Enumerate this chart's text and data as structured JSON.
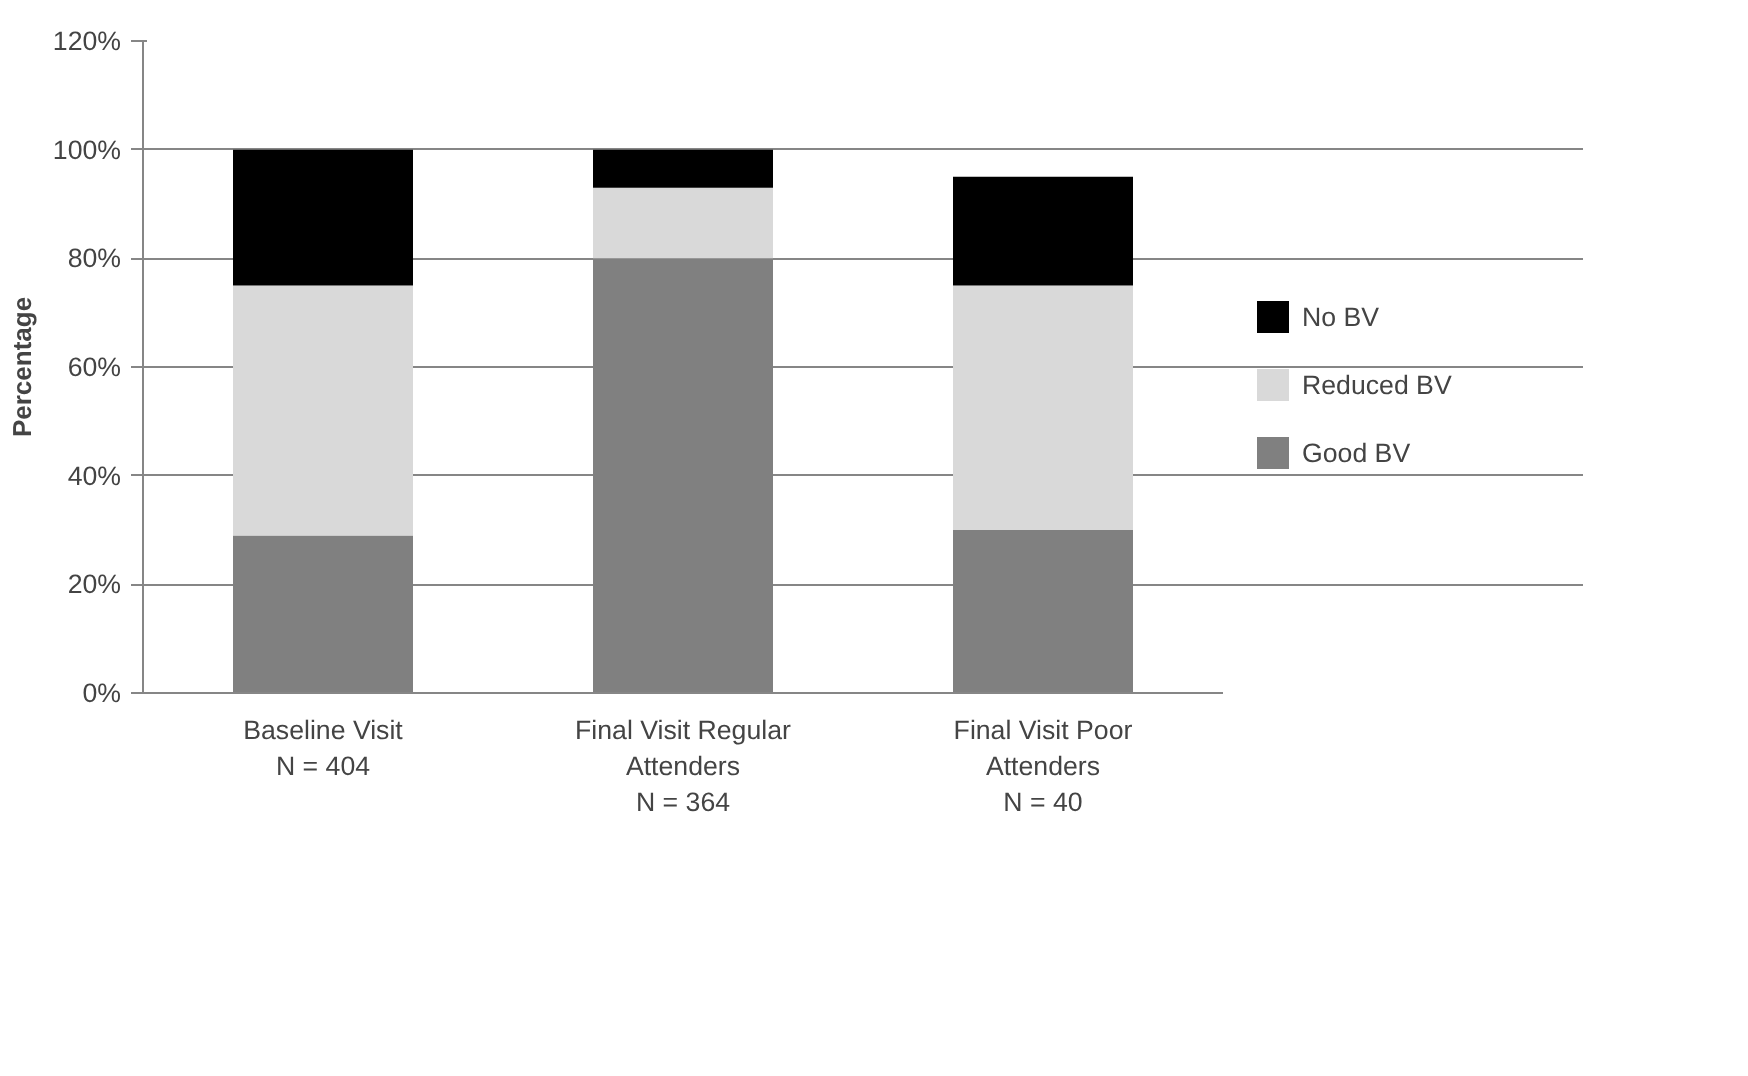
{
  "chart_data": {
    "type": "bar",
    "stacked": true,
    "ylabel": "Percentage",
    "categories": [
      "Baseline Visit\nN = 404",
      "Final Visit Regular\nAttenders\nN = 364",
      "Final Visit Poor\nAttenders\nN = 40"
    ],
    "series": [
      {
        "name": "Good BV",
        "color": "#808080",
        "values": [
          29,
          80,
          30
        ]
      },
      {
        "name": "Reduced BV",
        "color": "#d9d9d9",
        "values": [
          46,
          13,
          45
        ]
      },
      {
        "name": "No BV",
        "color": "#000000",
        "values": [
          25,
          7,
          20
        ]
      }
    ],
    "ylim": [
      0,
      120
    ],
    "yticks": [
      {
        "value": 0,
        "label": "0%"
      },
      {
        "value": 20,
        "label": "20%"
      },
      {
        "value": 40,
        "label": "40%"
      },
      {
        "value": 60,
        "label": "60%"
      },
      {
        "value": 80,
        "label": "80%"
      },
      {
        "value": 100,
        "label": "100%"
      },
      {
        "value": 120,
        "label": "120%"
      }
    ],
    "grid": "y",
    "legend": "right"
  }
}
